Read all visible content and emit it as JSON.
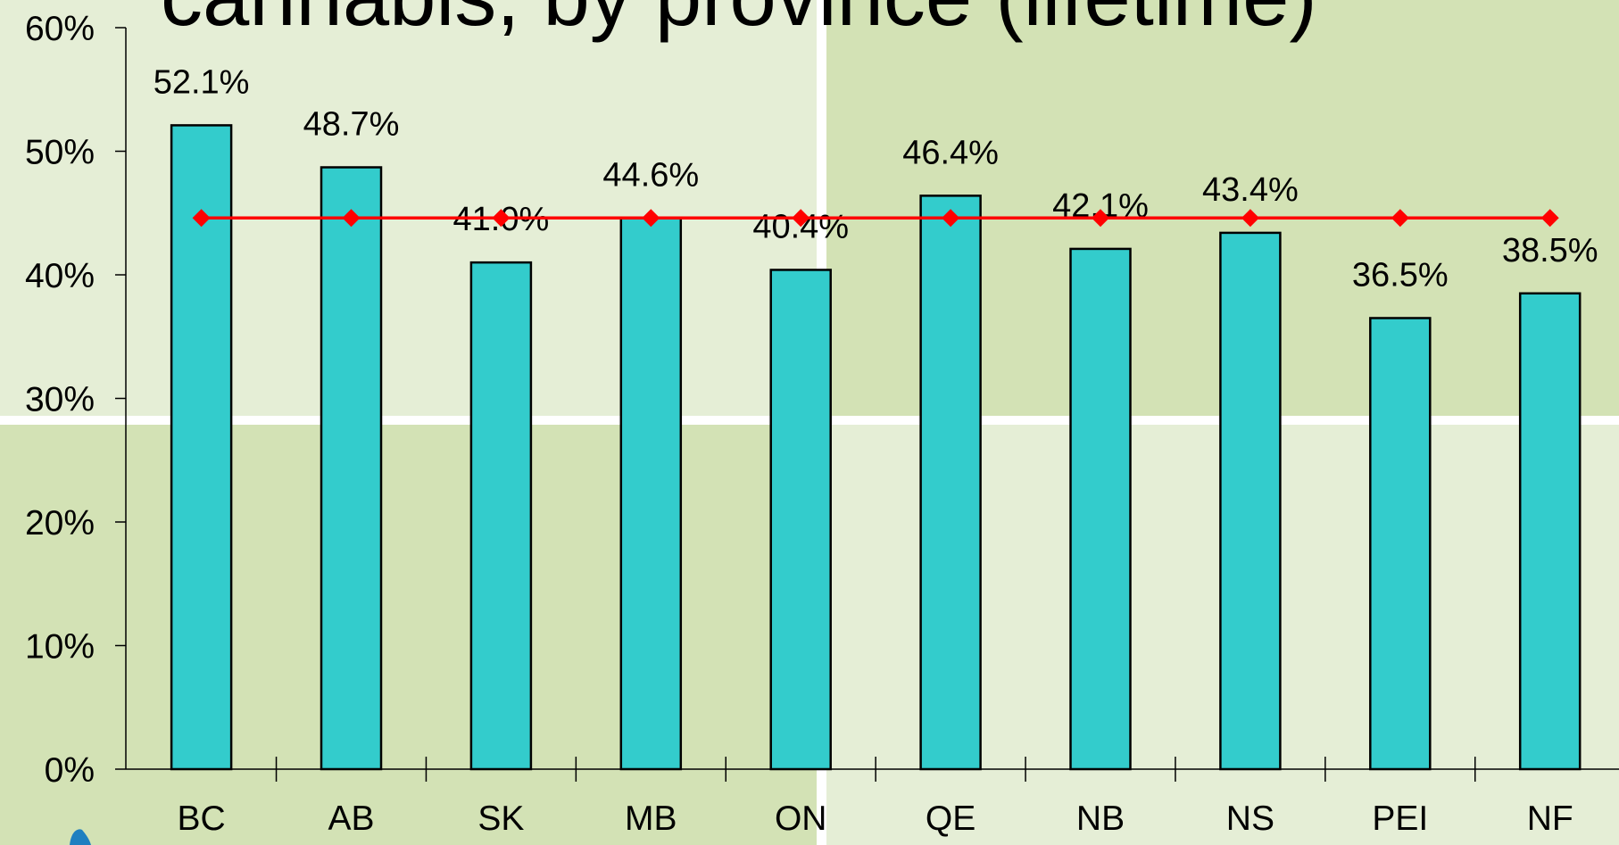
{
  "chart_data": {
    "type": "bar",
    "title": "cannabis, by province (lifetime)",
    "categories": [
      "BC",
      "AB",
      "SK",
      "MB",
      "ON",
      "QE",
      "NB",
      "NS",
      "PEI",
      "NF"
    ],
    "series": [
      {
        "type": "bar",
        "color": "#33cccc",
        "values": [
          52.1,
          48.7,
          41.0,
          44.6,
          40.4,
          46.4,
          42.1,
          43.4,
          36.5,
          38.5
        ],
        "value_labels": [
          "52.1%",
          "48.7%",
          "41.0%",
          "44.6%",
          "40.4%",
          "46.4%",
          "42.1%",
          "43.4%",
          "36.5%",
          "38.5%"
        ]
      },
      {
        "type": "line",
        "color": "#ff0000",
        "values": [
          44.6,
          44.6,
          44.6,
          44.6,
          44.6,
          44.6,
          44.6,
          44.6,
          44.6,
          44.6
        ]
      }
    ],
    "ylim": [
      0,
      60
    ],
    "yticks": [
      {
        "value": 0,
        "label": "0%"
      },
      {
        "value": 10,
        "label": "10%"
      },
      {
        "value": 20,
        "label": "20%"
      },
      {
        "value": 30,
        "label": "30%"
      },
      {
        "value": 40,
        "label": "40%"
      },
      {
        "value": 50,
        "label": "50%"
      },
      {
        "value": 60,
        "label": "60%"
      }
    ]
  }
}
